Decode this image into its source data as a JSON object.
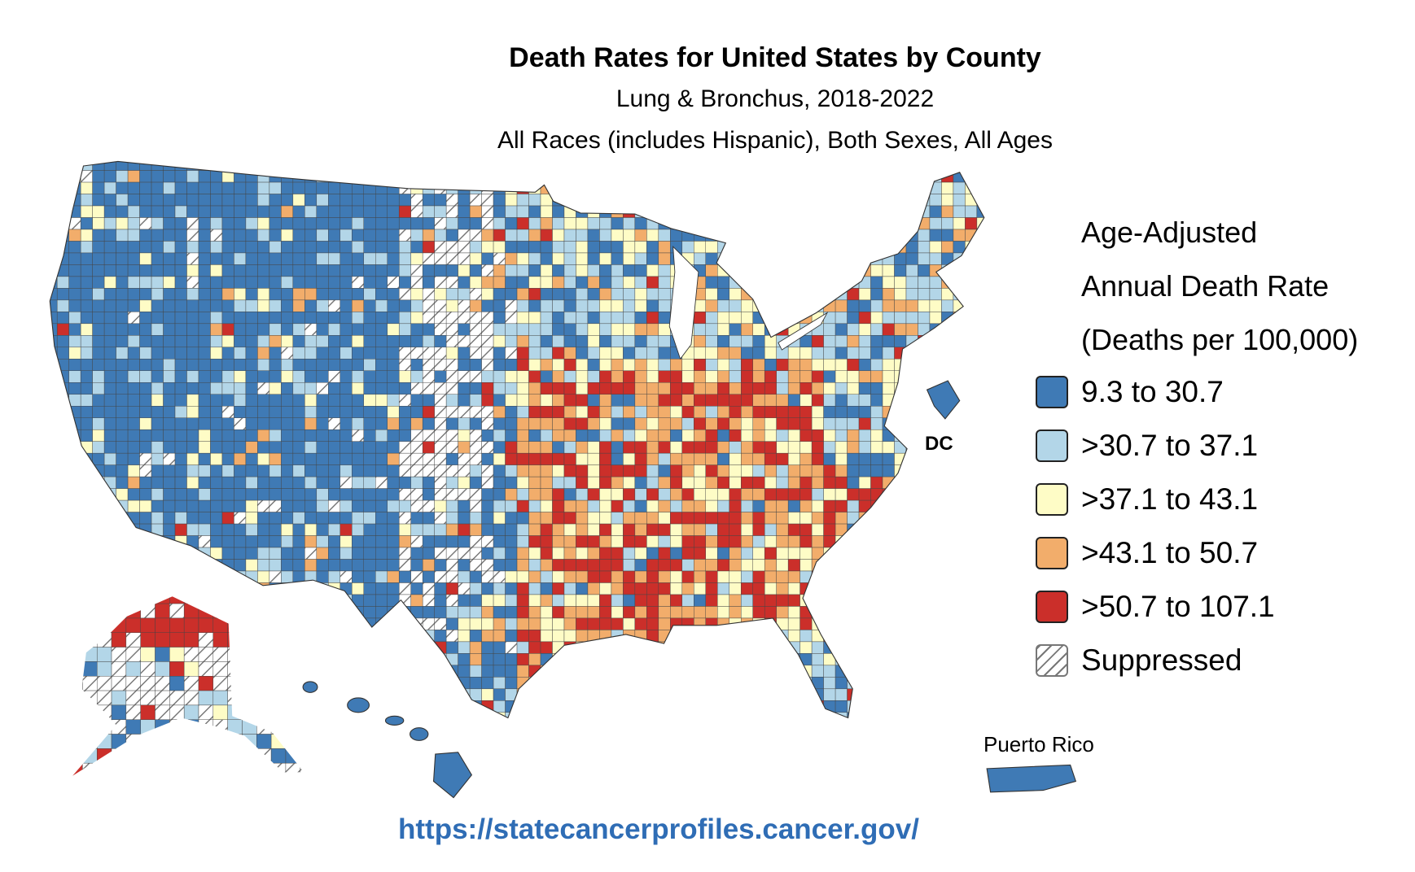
{
  "header": {
    "title": "Death Rates for United States by County",
    "subtitle_1": "Lung & Bronchus, 2018-2022",
    "subtitle_2": "All Races (includes Hispanic), Both Sexes, All Ages"
  },
  "legend": {
    "title_lines": [
      "Age-Adjusted",
      "Annual Death Rate",
      "(Deaths per 100,000)"
    ],
    "items": [
      {
        "label": "9.3 to 30.7",
        "color": "#3f7ab5"
      },
      {
        "label": ">30.7 to 37.1",
        "color": "#b3d6e8"
      },
      {
        "label": ">37.1 to 43.1",
        "color": "#fefcc6"
      },
      {
        "label": ">43.1 to 50.7",
        "color": "#f2ad6b"
      },
      {
        "label": ">50.7 to 107.1",
        "color": "#cb2f2a"
      },
      {
        "label": "Suppressed",
        "color": "hatched"
      }
    ]
  },
  "map": {
    "dc_label": "DC",
    "puerto_rico_label": "Puerto Rico"
  },
  "footer": {
    "url": "https://statecancerprofiles.cancer.gov/"
  }
}
